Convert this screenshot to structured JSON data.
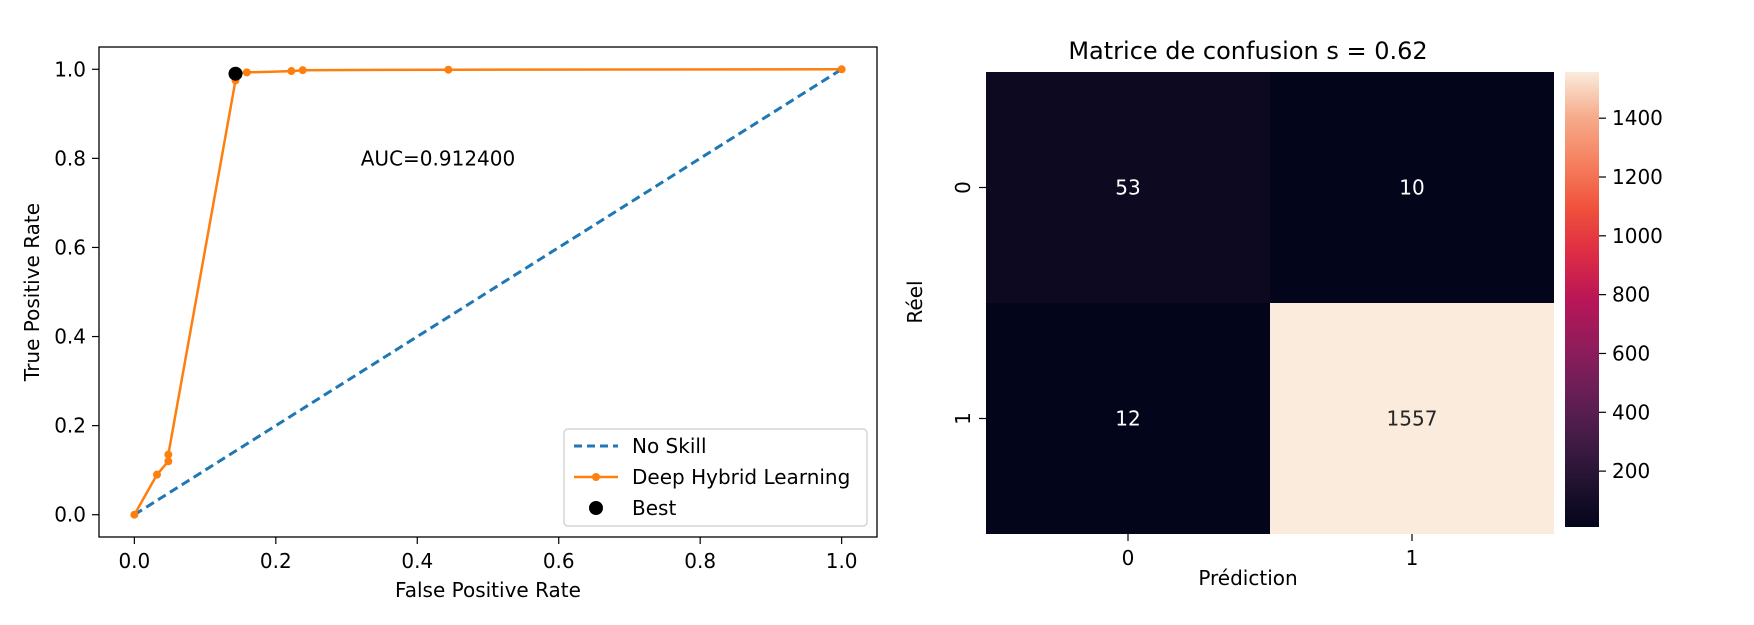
{
  "chart_data": [
    {
      "type": "line",
      "xlabel": "False Positive Rate",
      "ylabel": "True Positive Rate",
      "xlim": [
        -0.05,
        1.05
      ],
      "ylim": [
        -0.05,
        1.05
      ],
      "xticks": [
        0.0,
        0.2,
        0.4,
        0.6,
        0.8,
        1.0
      ],
      "yticks": [
        0.0,
        0.2,
        0.4,
        0.6,
        0.8,
        1.0
      ],
      "xtick_labels": [
        "0.0",
        "0.2",
        "0.4",
        "0.6",
        "0.8",
        "1.0"
      ],
      "ytick_labels": [
        "0.0",
        "0.2",
        "0.4",
        "0.6",
        "0.8",
        "1.0"
      ],
      "annotation": {
        "text": "AUC=0.912400",
        "x": 0.5,
        "y": 0.8
      },
      "series": [
        {
          "name": "No Skill",
          "style": "dashed",
          "color": "#1f77b4",
          "x": [
            0,
            1
          ],
          "y": [
            0,
            1
          ]
        },
        {
          "name": "Deep Hybrid Learning",
          "style": "solid-marker",
          "color": "#ff7f0e",
          "x": [
            0.0,
            0.032,
            0.048,
            0.048,
            0.143,
            0.143,
            0.159,
            0.222,
            0.238,
            0.444,
            1.0
          ],
          "y": [
            0.0,
            0.09,
            0.12,
            0.135,
            0.975,
            0.99,
            0.993,
            0.996,
            0.998,
            0.999,
            1.0
          ]
        },
        {
          "name": "Best",
          "style": "point",
          "color": "#000000",
          "x": [
            0.143
          ],
          "y": [
            0.99
          ]
        }
      ],
      "legend": {
        "placement": "lower-right",
        "entries": [
          "No Skill",
          "Deep Hybrid Learning",
          "Best"
        ]
      }
    },
    {
      "type": "heatmap",
      "title": "Matrice de confusion s = 0.62",
      "xlabel": "Prédiction",
      "ylabel": "Réel",
      "xtick_labels": [
        "0",
        "1"
      ],
      "ytick_labels": [
        "0",
        "1"
      ],
      "values": [
        [
          53,
          10
        ],
        [
          12,
          1557
        ]
      ],
      "colormap": "rocket",
      "colorbar": {
        "min": 10,
        "max": 1557,
        "ticks": [
          200,
          400,
          600,
          800,
          1000,
          1200,
          1400
        ]
      }
    }
  ]
}
